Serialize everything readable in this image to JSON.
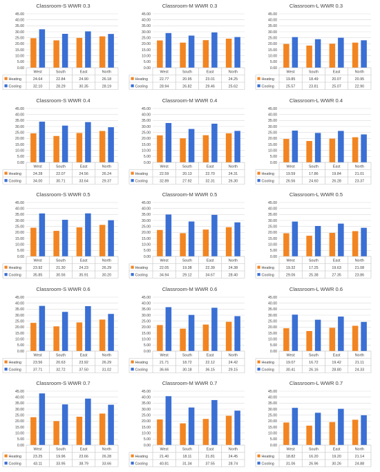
{
  "legend_labels": {
    "heating": "Heating",
    "cooling": "Cooling"
  },
  "colors": {
    "heating": "#f28522",
    "cooling": "#3a6fd4",
    "grid": "#d9d9d9",
    "table": "#bfbfbf",
    "text": "#404040"
  },
  "chart_data": [
    {
      "type": "bar",
      "title": "Classroom-S WWR 0.3",
      "categories": [
        "West",
        "South",
        "East",
        "North"
      ],
      "yticks": [
        "0.00",
        "5.00",
        "10.00",
        "15.00",
        "20.00",
        "25.00",
        "30.00",
        "35.00",
        "40.00",
        "45.00"
      ],
      "ylim": [
        0,
        45
      ],
      "series": [
        {
          "name": "Heating",
          "values": [
            "24.64",
            "22.84",
            "24.90",
            "26.18"
          ]
        },
        {
          "name": "Cooling",
          "values": [
            "32.10",
            "28.29",
            "30.35",
            "28.19"
          ]
        }
      ]
    },
    {
      "type": "bar",
      "title": "Classroom-M WWR 0.3",
      "categories": [
        "West",
        "South",
        "East",
        "North"
      ],
      "yticks": [
        "0.00",
        "5.00",
        "10.00",
        "15.00",
        "20.00",
        "25.00",
        "30.00",
        "35.00",
        "40.00",
        "45.00"
      ],
      "ylim": [
        0,
        45
      ],
      "series": [
        {
          "name": "Heating",
          "values": [
            "22.77",
            "20.95",
            "23.01",
            "24.25"
          ]
        },
        {
          "name": "Cooling",
          "values": [
            "28.94",
            "26.82",
            "29.46",
            "25.62"
          ]
        }
      ]
    },
    {
      "type": "bar",
      "title": "Classroom-L WWR 0.3",
      "categories": [
        "West",
        "South",
        "East",
        "North"
      ],
      "yticks": [
        "0.00",
        "5.00",
        "10.00",
        "15.00",
        "20.00",
        "25.00",
        "30.00",
        "35.00",
        "40.00",
        "45.00"
      ],
      "ylim": [
        0,
        45
      ],
      "series": [
        {
          "name": "Heating",
          "values": [
            "19.85",
            "18.49",
            "20.07",
            "20.95"
          ]
        },
        {
          "name": "Cooling",
          "values": [
            "25.57",
            "23.81",
            "25.07",
            "22.90"
          ]
        }
      ]
    },
    {
      "type": "bar",
      "title": "Classroom-S WWR 0.4",
      "categories": [
        "West",
        "South",
        "East",
        "North"
      ],
      "yticks": [
        "0.00",
        "5.00",
        "10.00",
        "15.00",
        "20.00",
        "25.00",
        "30.00",
        "35.00",
        "40.00",
        "45.00"
      ],
      "ylim": [
        0,
        45
      ],
      "series": [
        {
          "name": "Heating",
          "values": [
            "24.28",
            "22.07",
            "24.56",
            "26.24"
          ]
        },
        {
          "name": "Cooling",
          "values": [
            "34.00",
            "30.71",
            "33.64",
            "29.37"
          ]
        }
      ]
    },
    {
      "type": "bar",
      "title": "Classroom-M WWR 0.4",
      "categories": [
        "West",
        "South",
        "East",
        "North"
      ],
      "yticks": [
        "0.00",
        "5.00",
        "10.00",
        "15.00",
        "20.00",
        "25.00",
        "30.00",
        "35.00",
        "40.00",
        "45.00"
      ],
      "ylim": [
        0,
        45
      ],
      "series": [
        {
          "name": "Heating",
          "values": [
            "22.59",
            "20.13",
            "22.70",
            "24.31"
          ]
        },
        {
          "name": "Cooling",
          "values": [
            "32.89",
            "27.92",
            "32.31",
            "26.30"
          ]
        }
      ]
    },
    {
      "type": "bar",
      "title": "Classroom-L WWR 0.4",
      "categories": [
        "West",
        "South",
        "East",
        "North"
      ],
      "yticks": [
        "0.00",
        "5.00",
        "10.00",
        "15.00",
        "20.00",
        "25.00",
        "30.00",
        "35.00",
        "40.00",
        "45.00"
      ],
      "ylim": [
        0,
        45
      ],
      "series": [
        {
          "name": "Heating",
          "values": [
            "19.59",
            "17.86",
            "19.84",
            "21.01"
          ]
        },
        {
          "name": "Cooling",
          "values": [
            "26.56",
            "24.60",
            "26.28",
            "23.37"
          ]
        }
      ]
    },
    {
      "type": "bar",
      "title": "Classroom-S WWR 0.5",
      "categories": [
        "West",
        "South",
        "East",
        "North"
      ],
      "yticks": [
        "0.00",
        "5.00",
        "10.00",
        "15.00",
        "20.00",
        "25.00",
        "30.00",
        "35.00",
        "40.00",
        "45.00"
      ],
      "ylim": [
        0,
        45
      ],
      "series": [
        {
          "name": "Heating",
          "values": [
            "23.92",
            "21.30",
            "24.23",
            "26.29"
          ]
        },
        {
          "name": "Cooling",
          "values": [
            "35.85",
            "30.56",
            "35.91",
            "30.20"
          ]
        }
      ]
    },
    {
      "type": "bar",
      "title": "Classroom-M WWR 0.5",
      "categories": [
        "West",
        "South",
        "East",
        "North"
      ],
      "yticks": [
        "0.00",
        "5.00",
        "10.00",
        "15.00",
        "20.00",
        "25.00",
        "30.00",
        "35.00",
        "40.00",
        "45.00"
      ],
      "ylim": [
        0,
        45
      ],
      "series": [
        {
          "name": "Heating",
          "values": [
            "22.05",
            "19.38",
            "22.39",
            "24.38"
          ]
        },
        {
          "name": "Cooling",
          "values": [
            "34.94",
            "29.12",
            "34.67",
            "28.40"
          ]
        }
      ]
    },
    {
      "type": "bar",
      "title": "Classroom-L WWR 0.5",
      "categories": [
        "West",
        "South",
        "East",
        "North"
      ],
      "yticks": [
        "0.00",
        "5.00",
        "10.00",
        "15.00",
        "20.00",
        "25.00",
        "30.00",
        "35.00",
        "40.00",
        "45.00"
      ],
      "ylim": [
        0,
        45
      ],
      "series": [
        {
          "name": "Heating",
          "values": [
            "19.32",
            "17.25",
            "19.63",
            "21.08"
          ]
        },
        {
          "name": "Cooling",
          "values": [
            "29.06",
            "25.38",
            "27.35",
            "23.86"
          ]
        }
      ]
    },
    {
      "type": "bar",
      "title": "Classroom-S WWR 0.6",
      "categories": [
        "West",
        "South",
        "East",
        "North"
      ],
      "yticks": [
        "0.00",
        "5.00",
        "10.00",
        "15.00",
        "20.00",
        "25.00",
        "30.00",
        "35.00",
        "40.00",
        "45.00"
      ],
      "ylim": [
        0,
        45
      ],
      "series": [
        {
          "name": "Heating",
          "values": [
            "23.56",
            "20.63",
            "23.92",
            "26.29"
          ]
        },
        {
          "name": "Cooling",
          "values": [
            "37.71",
            "32.72",
            "37.50",
            "31.02"
          ]
        }
      ]
    },
    {
      "type": "bar",
      "title": "Classroom-M WWR 0.6",
      "categories": [
        "West",
        "South",
        "East",
        "North"
      ],
      "yticks": [
        "0.00",
        "5.00",
        "10.00",
        "15.00",
        "20.00",
        "25.00",
        "30.00",
        "35.00",
        "40.00",
        "45.00"
      ],
      "ylim": [
        0,
        45
      ],
      "series": [
        {
          "name": "Heating",
          "values": [
            "21.71",
            "18.72",
            "22.12",
            "24.42"
          ]
        },
        {
          "name": "Cooling",
          "values": [
            "36.66",
            "30.18",
            "36.15",
            "29.15"
          ]
        }
      ]
    },
    {
      "type": "bar",
      "title": "Classroom-L WWR 0.6",
      "categories": [
        "West",
        "South",
        "East",
        "North"
      ],
      "yticks": [
        "0.00",
        "5.00",
        "10.00",
        "15.00",
        "20.00",
        "25.00",
        "30.00",
        "35.00",
        "40.00",
        "45.00"
      ],
      "ylim": [
        0,
        45
      ],
      "series": [
        {
          "name": "Heating",
          "values": [
            "19.07",
            "16.72",
            "19.42",
            "21.11"
          ]
        },
        {
          "name": "Cooling",
          "values": [
            "30.41",
            "26.16",
            "28.80",
            "24.33"
          ]
        }
      ]
    },
    {
      "type": "bar",
      "title": "Classroom-S WWR 0.7",
      "categories": [
        "West",
        "South",
        "East",
        "North"
      ],
      "yticks": [
        "0.00",
        "5.00",
        "10.00",
        "15.00",
        "20.00",
        "25.00",
        "30.00",
        "35.00",
        "40.00",
        "45.00"
      ],
      "ylim": [
        0,
        45
      ],
      "series": [
        {
          "name": "Heating",
          "values": [
            "23.25",
            "19.96",
            "23.66",
            "26.28"
          ]
        },
        {
          "name": "Cooling",
          "values": [
            "43.11",
            "33.95",
            "38.79",
            "33.66"
          ]
        }
      ]
    },
    {
      "type": "bar",
      "title": "Classroom-M WWR 0.7",
      "categories": [
        "West",
        "South",
        "East",
        "North"
      ],
      "yticks": [
        "0.00",
        "5.00",
        "10.00",
        "15.00",
        "20.00",
        "25.00",
        "30.00",
        "35.00",
        "40.00",
        "45.00"
      ],
      "ylim": [
        0,
        45
      ],
      "series": [
        {
          "name": "Heating",
          "values": [
            "21.40",
            "18.11",
            "21.81",
            "24.45"
          ]
        },
        {
          "name": "Cooling",
          "values": [
            "40.81",
            "31.34",
            "37.55",
            "28.74"
          ]
        }
      ]
    },
    {
      "type": "bar",
      "title": "Classroom-L WWR 0.7",
      "categories": [
        "West",
        "South",
        "East",
        "North"
      ],
      "yticks": [
        "0.00",
        "5.00",
        "10.00",
        "15.00",
        "20.00",
        "25.00",
        "30.00",
        "35.00",
        "40.00",
        "45.00"
      ],
      "ylim": [
        0,
        45
      ],
      "series": [
        {
          "name": "Heating",
          "values": [
            "18.82",
            "16.20",
            "19.20",
            "21.14"
          ]
        },
        {
          "name": "Cooling",
          "values": [
            "31.06",
            "26.96",
            "30.26",
            "24.88"
          ]
        }
      ]
    }
  ]
}
